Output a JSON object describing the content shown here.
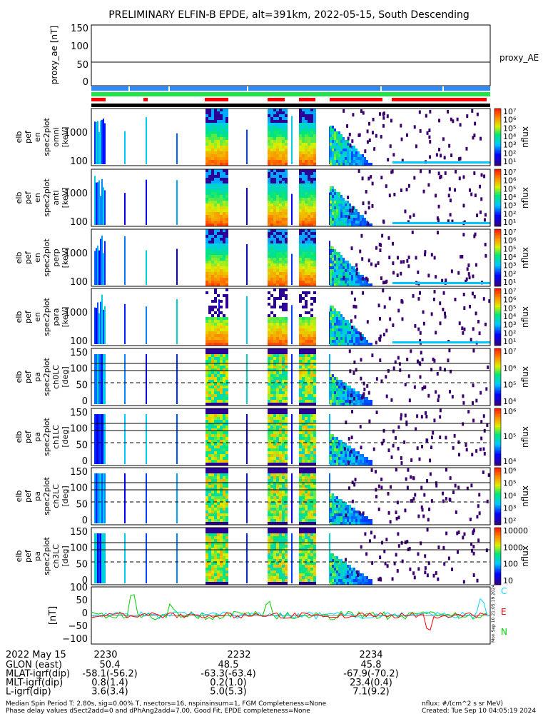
{
  "title": "PRELIMINARY ELFIN-B EPDE, alt=391km, 2022-05-15, South Descending",
  "colors": {
    "bar_blue": "#2a8bff",
    "bar_green": "#21e34a",
    "bar_red": "#ff0000",
    "line_c": "#00d8ff",
    "line_e": "#ff0000",
    "line_n": "#00d000",
    "spec_high": "#ff3000",
    "spec_mid": "#f0f000",
    "spec_low": "#00c8ff",
    "spec_min": "#3a0070"
  },
  "chart_data": [
    {
      "type": "line",
      "name": "proxy_ae",
      "ylabel": "proxy_ae\n[nT]",
      "yticks": [
        "150",
        "100",
        "50",
        "0"
      ],
      "ylim": [
        -10,
        155
      ],
      "legend": "proxy_AE",
      "series": [
        {
          "name": "proxy_AE",
          "values": [
            57,
            57
          ]
        }
      ]
    },
    {
      "type": "heatmap",
      "name": "pef_en_omni",
      "ylabel": [
        "elb",
        "pef",
        "en",
        "spec2plot",
        "omni",
        "[keV]"
      ],
      "yticks": [
        "1000",
        "100"
      ],
      "colorbar_label": "nflux",
      "colorbar_ticks": [
        "10⁷",
        "10⁶",
        "10⁵",
        "10⁴",
        "10³",
        "10²",
        "10¹"
      ]
    },
    {
      "type": "heatmap",
      "name": "pef_en_anti",
      "ylabel": [
        "elb",
        "pef",
        "en",
        "spec2plot",
        "anti",
        "[keV]"
      ],
      "yticks": [
        "1000",
        "100"
      ],
      "colorbar_label": "nflux",
      "colorbar_ticks": [
        "10⁷",
        "10⁶",
        "10⁵",
        "10⁴",
        "10³",
        "10²",
        "10¹"
      ]
    },
    {
      "type": "heatmap",
      "name": "pef_en_perp",
      "ylabel": [
        "elb",
        "pef",
        "en",
        "spec2plot",
        "perp",
        "[keV]"
      ],
      "yticks": [
        "1000",
        "100"
      ],
      "colorbar_label": "nflux",
      "colorbar_ticks": [
        "10⁷",
        "10⁶",
        "10⁵",
        "10⁴",
        "10³",
        "10²",
        "10¹"
      ]
    },
    {
      "type": "heatmap",
      "name": "pef_en_para",
      "ylabel": [
        "elb",
        "pef",
        "en",
        "spec2plot",
        "para",
        "[keV]"
      ],
      "yticks": [
        "1000",
        "100"
      ],
      "colorbar_label": "nflux",
      "colorbar_ticks": [
        "10⁷",
        "10⁶",
        "10⁵",
        "10⁴",
        "10³",
        "10²",
        "10¹"
      ]
    },
    {
      "type": "heatmap",
      "name": "pef_pa_ch0",
      "ylabel": [
        "elb",
        "pef",
        "pa",
        "spec2plot",
        "ch0LC",
        "[deg]"
      ],
      "yticks": [
        "150",
        "100",
        "50",
        "0"
      ],
      "colorbar_label": "nflux",
      "colorbar_ticks": [
        "10⁷",
        "10⁶",
        "10⁵",
        "10⁴"
      ]
    },
    {
      "type": "heatmap",
      "name": "pef_pa_ch1",
      "ylabel": [
        "elb",
        "pef",
        "pa",
        "spec2plot",
        "ch1LC",
        "[deg]"
      ],
      "yticks": [
        "150",
        "100",
        "50",
        "0"
      ],
      "colorbar_label": "nflux",
      "colorbar_ticks": [
        "10⁶",
        "10⁵",
        "10⁴"
      ]
    },
    {
      "type": "heatmap",
      "name": "pef_pa_ch2",
      "ylabel": [
        "elb",
        "pef",
        "pa",
        "spec2plot",
        "ch2LC",
        "[deg]"
      ],
      "yticks": [
        "150",
        "100",
        "50",
        "0"
      ],
      "colorbar_label": "nflux",
      "colorbar_ticks": [
        "10⁶",
        "10⁵",
        "10⁴",
        "10³",
        "10²"
      ]
    },
    {
      "type": "heatmap",
      "name": "pef_pa_ch3",
      "ylabel": [
        "elb",
        "pef",
        "pa",
        "spec2plot",
        "ch3LC",
        "[deg]"
      ],
      "yticks": [
        "150",
        "100",
        "50",
        "0"
      ],
      "colorbar_label": "nflux",
      "colorbar_ticks": [
        "10000",
        "1000",
        "100",
        "10"
      ]
    },
    {
      "type": "line",
      "name": "mag_residual",
      "ylabel": "[nT]",
      "yticks": [
        "100",
        "50",
        "0",
        "−50",
        "−100"
      ],
      "ylim": [
        -110,
        110
      ],
      "legend": [
        "C",
        "E",
        "N"
      ]
    }
  ],
  "side_stamp": "Mon Sep 10 21:05:19 2024",
  "xaxis": {
    "ticks": [
      "2230",
      "2232",
      "2234"
    ]
  },
  "footer": {
    "date": "2022 May 15",
    "rows": [
      {
        "label": "GLON (east)",
        "v": [
          "50.4",
          "48.5",
          "45.8"
        ]
      },
      {
        "label": "MLAT-igrf(dip)",
        "v": [
          "-58.1(-56.2)",
          "-63.3(-63.4)",
          "-67.9(-70.2)"
        ]
      },
      {
        "label": "MLT-igrf(dip)",
        "v": [
          "0.8(1.4)",
          "0.2(1.0)",
          "23.4(0.4)"
        ]
      },
      {
        "label": "L-igrf(dip)",
        "v": [
          "3.6(3.4)",
          "5.0(5.3)",
          "7.1(9.2)"
        ]
      }
    ],
    "note1": "Median Spin Period T: 2.80s, sig=0.00% T, nsectors=16, nspinsinsum=1, FGM Completeness=None",
    "note2": "Phase delay values dSect2add=0 and dPhAng2add=7.00, Good Fit, EPDE completeness=None",
    "units": "nflux: #/(cm^2 s sr MeV)",
    "created": "Created: Tue Sep 10 04:05:19 2024"
  }
}
